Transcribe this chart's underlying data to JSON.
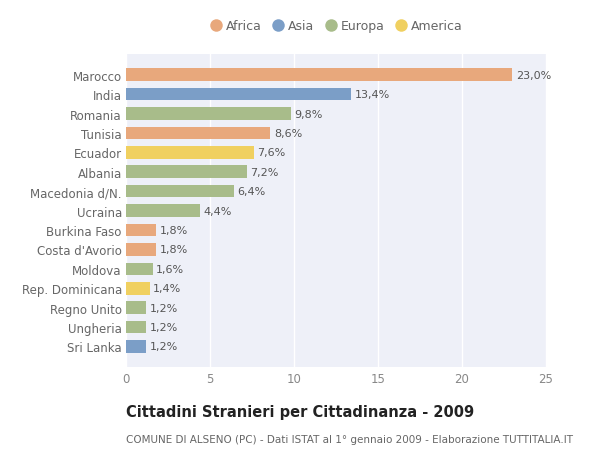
{
  "categories": [
    "Marocco",
    "India",
    "Romania",
    "Tunisia",
    "Ecuador",
    "Albania",
    "Macedonia d/N.",
    "Ucraina",
    "Burkina Faso",
    "Costa d'Avorio",
    "Moldova",
    "Rep. Dominicana",
    "Regno Unito",
    "Ungheria",
    "Sri Lanka"
  ],
  "values": [
    23.0,
    13.4,
    9.8,
    8.6,
    7.6,
    7.2,
    6.4,
    4.4,
    1.8,
    1.8,
    1.6,
    1.4,
    1.2,
    1.2,
    1.2
  ],
  "labels": [
    "23,0%",
    "13,4%",
    "9,8%",
    "8,6%",
    "7,6%",
    "7,2%",
    "6,4%",
    "4,4%",
    "1,8%",
    "1,8%",
    "1,6%",
    "1,4%",
    "1,2%",
    "1,2%",
    "1,2%"
  ],
  "continents": [
    "Africa",
    "Asia",
    "Europa",
    "Africa",
    "America",
    "Europa",
    "Europa",
    "Europa",
    "Africa",
    "Africa",
    "Europa",
    "America",
    "Europa",
    "Europa",
    "Asia"
  ],
  "colors": {
    "Africa": "#E8A87C",
    "Asia": "#7B9EC7",
    "Europa": "#A8BC8A",
    "America": "#F0D060"
  },
  "title": "Cittadini Stranieri per Cittadinanza - 2009",
  "subtitle": "COMUNE DI ALSENO (PC) - Dati ISTAT al 1° gennaio 2009 - Elaborazione TUTTITALIA.IT",
  "xlim": [
    0,
    25
  ],
  "xticks": [
    0,
    5,
    10,
    15,
    20,
    25
  ],
  "background_color": "#ffffff",
  "plot_bg_color": "#eef0f8",
  "grid_color": "#ffffff",
  "bar_height": 0.65,
  "label_fontsize": 8.0,
  "tick_fontsize": 8.5,
  "title_fontsize": 10.5,
  "subtitle_fontsize": 7.5,
  "legend_order": [
    "Africa",
    "Asia",
    "Europa",
    "America"
  ]
}
